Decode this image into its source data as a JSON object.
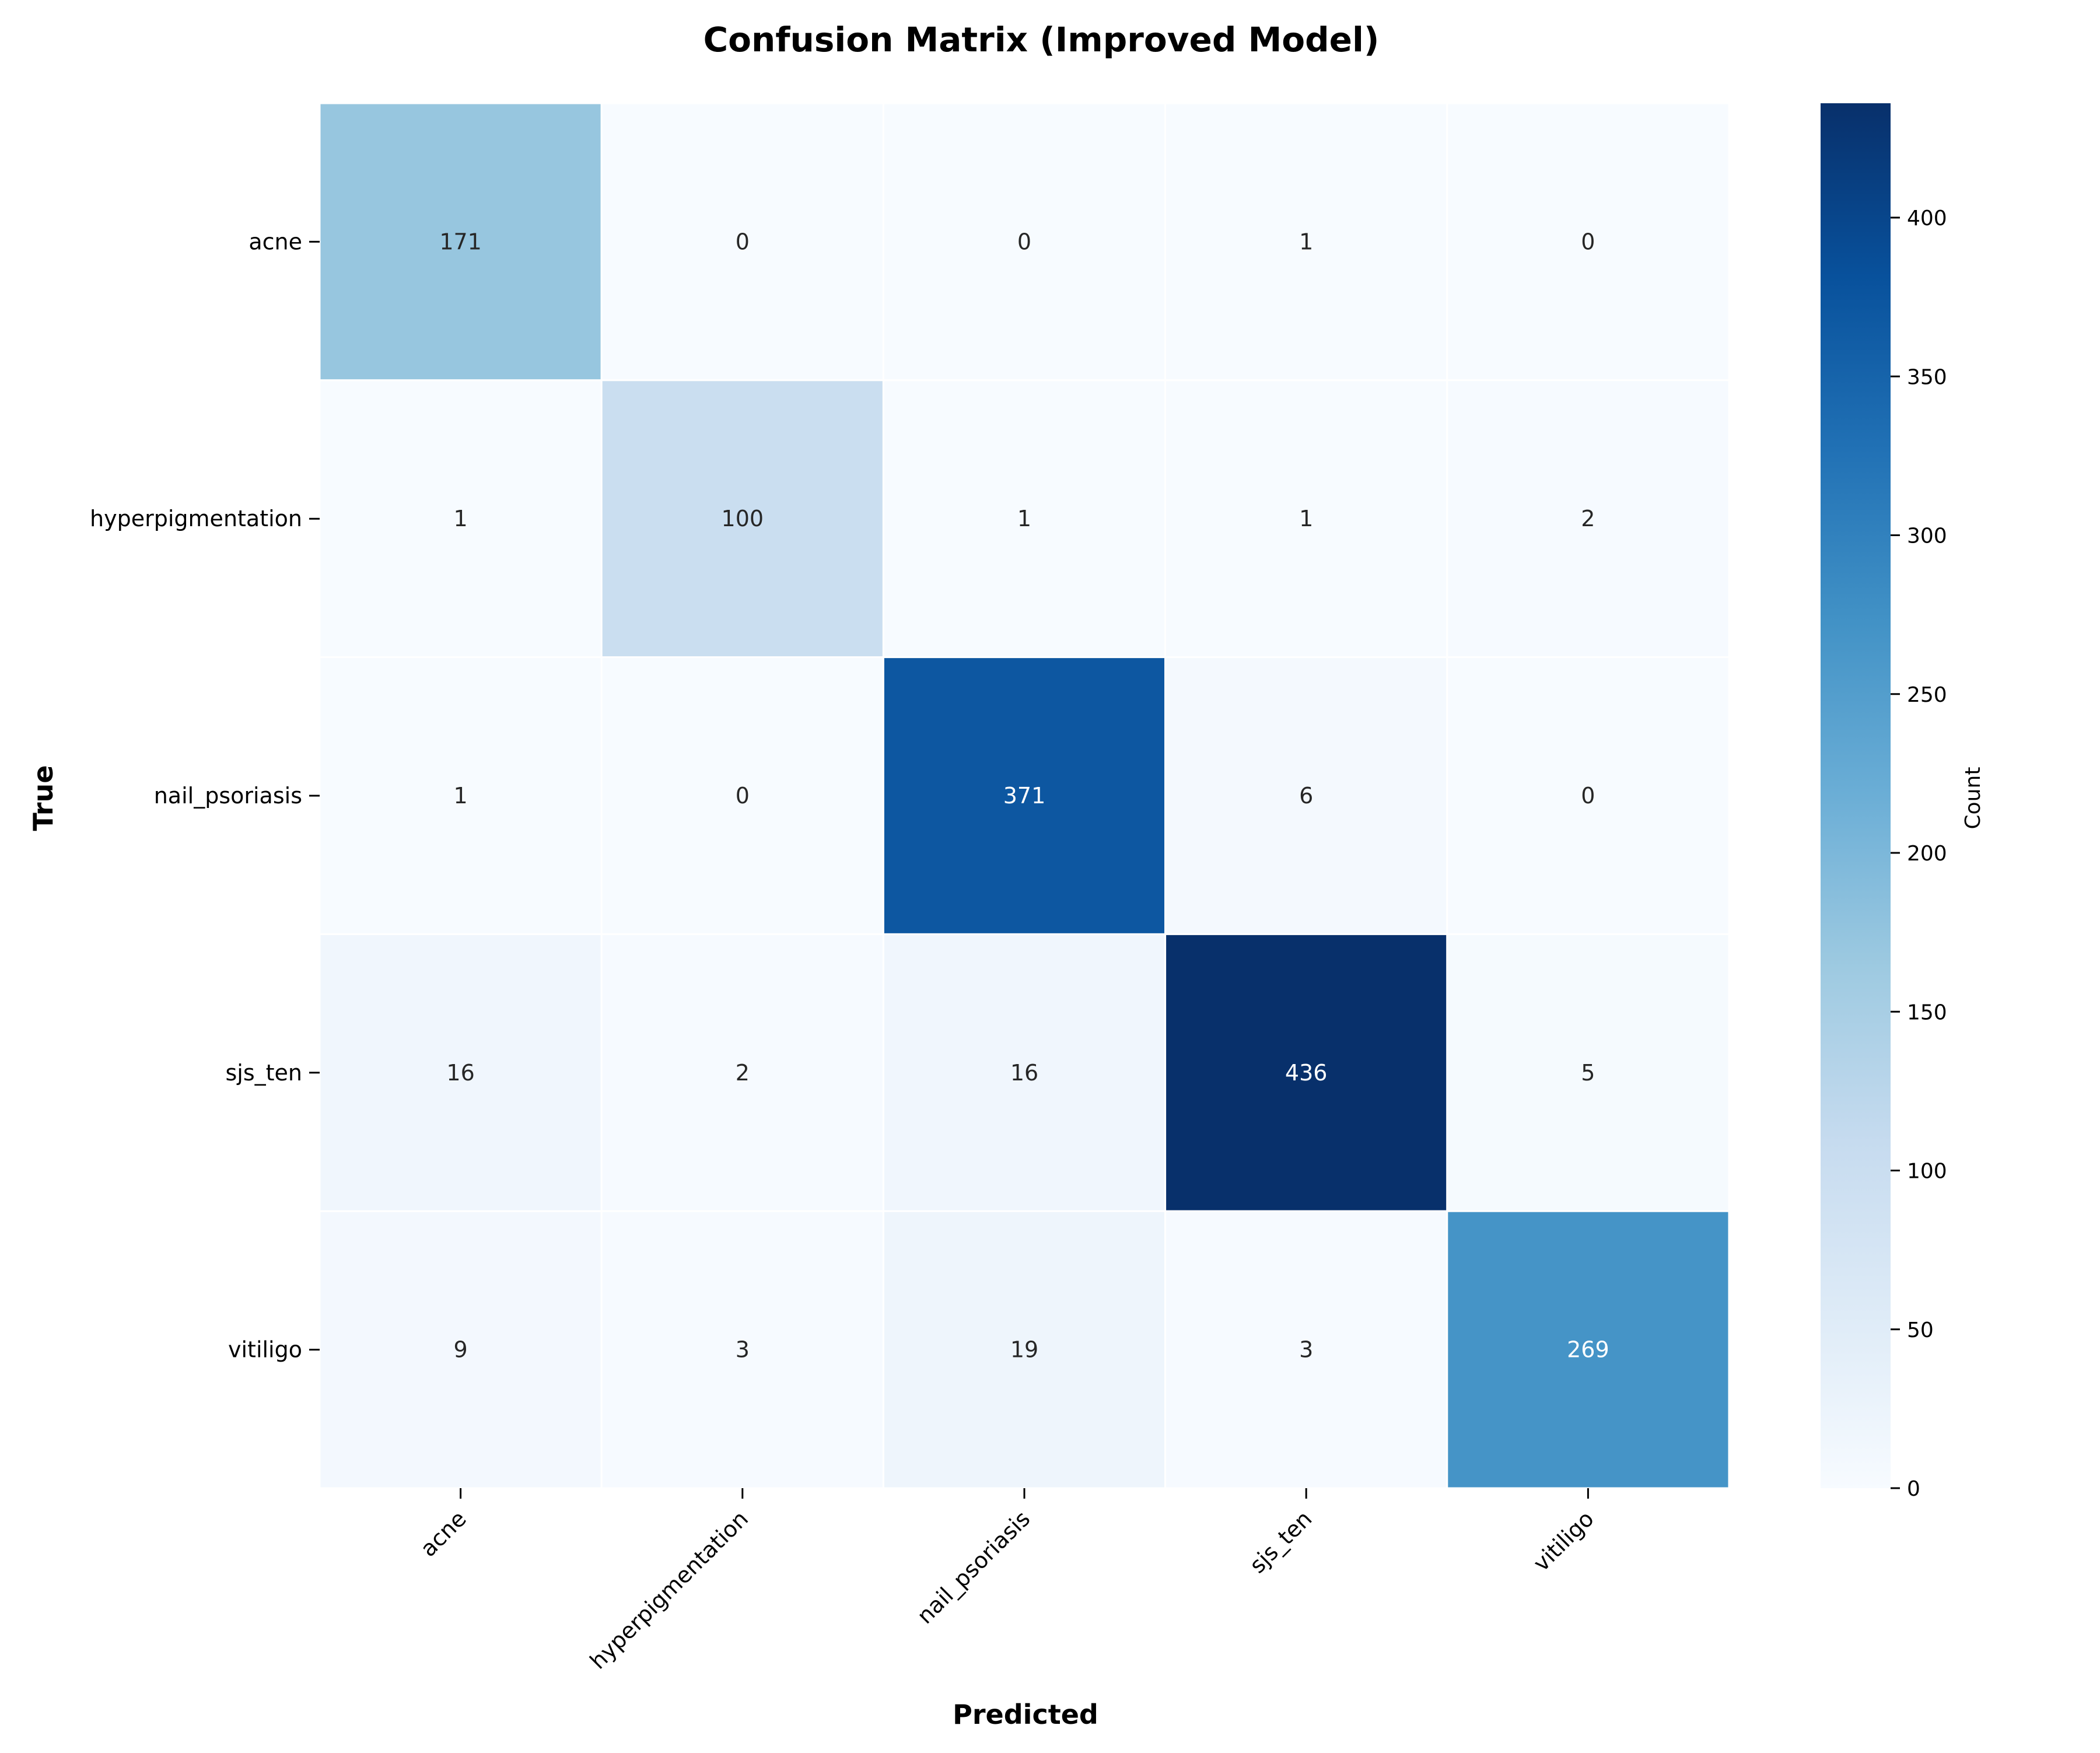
{
  "chart_data": {
    "type": "heatmap",
    "title": "Confusion Matrix (Improved Model)",
    "xlabel": "Predicted",
    "ylabel": "True",
    "x_categories": [
      "acne",
      "hyperpigmentation",
      "nail_psoriasis",
      "sjs_ten",
      "vitiligo"
    ],
    "y_categories": [
      "acne",
      "hyperpigmentation",
      "nail_psoriasis",
      "sjs_ten",
      "vitiligo"
    ],
    "values": [
      [
        171,
        0,
        0,
        1,
        0
      ],
      [
        1,
        100,
        1,
        1,
        2
      ],
      [
        1,
        0,
        371,
        6,
        0
      ],
      [
        16,
        2,
        16,
        436,
        5
      ],
      [
        9,
        3,
        19,
        3,
        269
      ]
    ],
    "colorbar": {
      "label": "Count",
      "min": 0,
      "max": 436,
      "ticks": [
        0,
        50,
        100,
        150,
        200,
        250,
        300,
        350,
        400
      ],
      "colormap": "Blues"
    },
    "cell_border_color": "#ffffff",
    "text_color_light": "#ffffff",
    "text_color_dark": "#262626",
    "grid": false
  }
}
